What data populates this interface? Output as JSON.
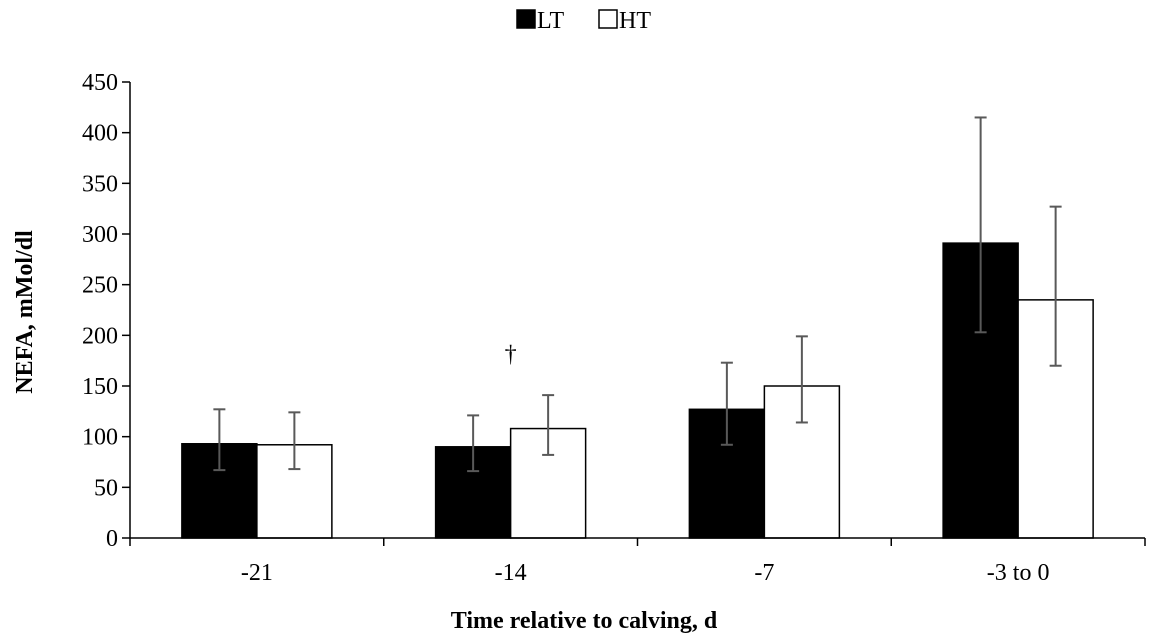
{
  "chart_data": {
    "type": "bar",
    "title": "",
    "xlabel": "Time relative to calving, d",
    "ylabel": "NEFA, mMol/dl",
    "categories": [
      "-21",
      "-14",
      "-7",
      "-3 to 0"
    ],
    "ylim": [
      0,
      450
    ],
    "yticks": [
      0,
      50,
      100,
      150,
      200,
      250,
      300,
      350,
      400,
      450
    ],
    "grid": false,
    "legend_position": "top-center",
    "series": [
      {
        "name": "LT",
        "color": "#000000",
        "values": [
          93,
          90,
          127,
          291
        ],
        "error_low": [
          67,
          66,
          92,
          203
        ],
        "error_high": [
          127,
          121,
          173,
          415
        ]
      },
      {
        "name": "HT",
        "color": "#ffffff",
        "values": [
          92,
          108,
          150,
          235
        ],
        "error_low": [
          68,
          82,
          114,
          170
        ],
        "error_high": [
          124,
          141,
          199,
          327
        ]
      }
    ],
    "annotations": [
      {
        "text": "†",
        "category": "-14",
        "y": 182
      }
    ]
  }
}
